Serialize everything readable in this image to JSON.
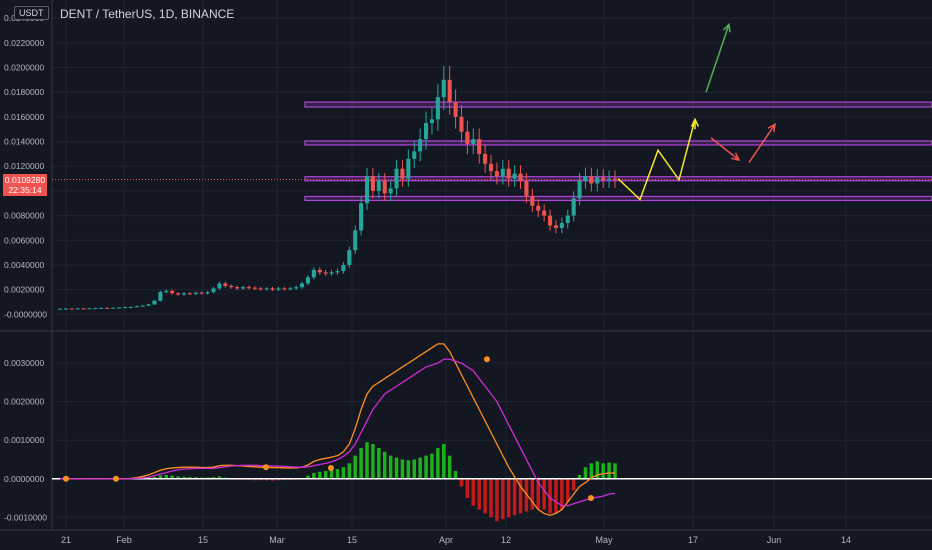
{
  "header": {
    "unit": "USDT",
    "title": "DENT / TetherUS, 1D, BINANCE",
    "last_price": "0.0109280",
    "countdown": "22:35:14"
  },
  "colors": {
    "background": "#131722",
    "up": "#26a69a",
    "down": "#ef5350",
    "zone": "#b044d8",
    "arrow_green": "#4caf50",
    "arrow_red": "#ef5350",
    "path_yellow": "#f5e727",
    "macd_line": "#ff8f1f",
    "signal_line": "#d02bd6",
    "hist_up": "#1cb01c",
    "hist_down": "#c41a1a"
  },
  "chart_data": [
    {
      "type": "candlestick",
      "symbol": "DENT / TetherUS",
      "interval": "1D",
      "exchange": "BINANCE",
      "y_ticks": [
        "0.0240000",
        "0.0220000",
        "0.0200000",
        "0.0180000",
        "0.0160000",
        "0.0140000",
        "0.0120000",
        "0.0100000",
        "0.0080000",
        "0.0060000",
        "0.0040000",
        "0.0020000",
        "-0.0000000"
      ],
      "ylim": [
        -0.0003,
        0.0245
      ],
      "x_ticks": [
        "21",
        "Feb",
        "15",
        "Mar",
        "15",
        "Apr",
        "12",
        "May",
        "17",
        "Jun",
        "14"
      ],
      "last_price": 0.010928,
      "support_resistance_zones": [
        [
          0.0168,
          0.0172
        ],
        [
          0.01375,
          0.01405
        ],
        [
          0.01095,
          0.01115
        ],
        [
          0.00935,
          0.00955
        ]
      ],
      "closes": [
        0.00045,
        0.00047,
        0.00046,
        0.00048,
        0.00047,
        0.00049,
        0.0005,
        0.00052,
        0.00051,
        0.00053,
        0.00055,
        0.00058,
        0.0006,
        0.00065,
        0.0007,
        0.0008,
        0.0011,
        0.0018,
        0.0019,
        0.0017,
        0.0016,
        0.0017,
        0.00165,
        0.00175,
        0.0017,
        0.0018,
        0.0021,
        0.0025,
        0.0023,
        0.0022,
        0.0021,
        0.0022,
        0.00215,
        0.0021,
        0.00205,
        0.0021,
        0.002,
        0.0021,
        0.00205,
        0.0021,
        0.0022,
        0.0025,
        0.003,
        0.0036,
        0.0034,
        0.0033,
        0.0034,
        0.0035,
        0.004,
        0.0052,
        0.0068,
        0.009,
        0.0112,
        0.01,
        0.0108,
        0.0098,
        0.0102,
        0.0118,
        0.011,
        0.0126,
        0.0132,
        0.0142,
        0.0155,
        0.0158,
        0.0176,
        0.019,
        0.0172,
        0.016,
        0.0148,
        0.0138,
        0.0142,
        0.013,
        0.0122,
        0.0116,
        0.0112,
        0.0118,
        0.011,
        0.0114,
        0.0108,
        0.0096,
        0.0088,
        0.0084,
        0.008,
        0.0072,
        0.007,
        0.0074,
        0.008,
        0.0094,
        0.0108,
        0.0112,
        0.0106,
        0.0111,
        0.0109,
        0.011,
        0.0109
      ],
      "projected_path": [
        [
          0.011,
          0.0093,
          0.0133,
          0.0109,
          0.0158
        ]
      ],
      "annotation_arrows": [
        "green up-arrow from ~0.018 toward ~0.0235",
        "red down-arrow toward ~0.0128",
        "red up-arrow toward ~0.0155"
      ]
    },
    {
      "type": "macd",
      "y_ticks": [
        "0.0030000",
        "0.0020000",
        "0.0010000",
        "0.0000000",
        "-0.0010000"
      ],
      "ylim": [
        -0.0012,
        0.0036
      ],
      "histogram": [
        0,
        0,
        0,
        0,
        0,
        0,
        0,
        0,
        0,
        0,
        0,
        0,
        0,
        1e-05,
        2e-05,
        3e-05,
        5e-05,
        9e-05,
        0.0001,
        8e-05,
        6e-05,
        5e-05,
        4e-05,
        4e-05,
        3e-05,
        3e-05,
        4e-05,
        6e-05,
        3e-05,
        1e-05,
        -1e-05,
        -2e-05,
        -3e-05,
        -4e-05,
        -4e-05,
        -4e-05,
        -5e-05,
        -4e-05,
        -3e-05,
        -3e-05,
        -2e-05,
        1e-05,
        8e-05,
        0.00015,
        0.00018,
        0.0002,
        0.00022,
        0.00025,
        0.0003,
        0.0004,
        0.0006,
        0.0008,
        0.00095,
        0.0009,
        0.0008,
        0.0007,
        0.0006,
        0.00055,
        0.0005,
        0.00048,
        0.0005,
        0.00055,
        0.0006,
        0.00065,
        0.0008,
        0.0009,
        0.0006,
        0.0002,
        -0.0002,
        -0.0005,
        -0.0007,
        -0.0008,
        -0.0009,
        -0.001,
        -0.0011,
        -0.00105,
        -0.001,
        -0.00095,
        -0.0009,
        -0.00085,
        -0.0008,
        -0.00078,
        -0.0008,
        -0.0009,
        -0.0009,
        -0.0008,
        -0.0006,
        -0.0003,
        0.0001,
        0.0003,
        0.0004,
        0.00045,
        0.0004,
        0.00042,
        0.0004
      ],
      "macd": [
        0,
        0,
        0,
        0,
        0,
        0,
        0,
        0,
        0,
        0,
        0,
        0,
        1e-05,
        3e-05,
        6e-05,
        0.0001,
        0.00016,
        0.00022,
        0.00026,
        0.00028,
        0.00029,
        0.0003,
        0.0003,
        0.0003,
        0.00029,
        0.00029,
        0.0003,
        0.00034,
        0.00035,
        0.00035,
        0.00034,
        0.00033,
        0.00032,
        0.00031,
        0.0003,
        0.0003,
        0.00029,
        0.00029,
        0.00028,
        0.00028,
        0.00028,
        0.0003,
        0.00036,
        0.00045,
        0.0005,
        0.00053,
        0.00056,
        0.0006,
        0.0007,
        0.0009,
        0.0013,
        0.0018,
        0.0022,
        0.0024,
        0.0025,
        0.0026,
        0.0027,
        0.0028,
        0.0029,
        0.003,
        0.0031,
        0.0032,
        0.0033,
        0.0034,
        0.0035,
        0.0035,
        0.0033,
        0.003,
        0.0027,
        0.0024,
        0.0021,
        0.0018,
        0.0015,
        0.0012,
        0.0009,
        0.0006,
        0.0003,
        5e-05,
        -0.0002,
        -0.0004,
        -0.0006,
        -0.0008,
        -0.0009,
        -0.00095,
        -0.0009,
        -0.0008,
        -0.0006,
        -0.0004,
        -0.0002,
        -0.0001,
        2e-05,
        0.0001,
        0.00013,
        0.00015,
        0.00015
      ],
      "signal": [
        0,
        0,
        0,
        0,
        0,
        0,
        0,
        0,
        0,
        0,
        0,
        0,
        0,
        1e-05,
        2e-05,
        4e-05,
        8e-05,
        0.00012,
        0.00016,
        0.0002,
        0.00023,
        0.00025,
        0.00026,
        0.00027,
        0.00027,
        0.00027,
        0.00027,
        0.00029,
        0.00031,
        0.00033,
        0.00034,
        0.00035,
        0.00035,
        0.00035,
        0.00034,
        0.00034,
        0.00033,
        0.00033,
        0.00032,
        0.00031,
        0.0003,
        0.0003,
        0.00031,
        0.00034,
        0.00037,
        0.0004,
        0.00044,
        0.0005,
        0.00058,
        0.0007,
        0.0009,
        0.0012,
        0.0015,
        0.0018,
        0.002,
        0.0022,
        0.0023,
        0.0024,
        0.0025,
        0.0026,
        0.0027,
        0.0028,
        0.0029,
        0.00295,
        0.003,
        0.0031,
        0.0031,
        0.00305,
        0.003,
        0.0029,
        0.0028,
        0.0026,
        0.0024,
        0.0022,
        0.002,
        0.0017,
        0.0014,
        0.0011,
        0.0008,
        0.0005,
        0.0002,
        -0.0001,
        -0.0003,
        -0.0005,
        -0.0006,
        -0.0007,
        -0.0007,
        -0.00065,
        -0.0006,
        -0.00055,
        -0.0005,
        -0.00048,
        -0.00045,
        -0.0004,
        -0.00038
      ]
    }
  ]
}
